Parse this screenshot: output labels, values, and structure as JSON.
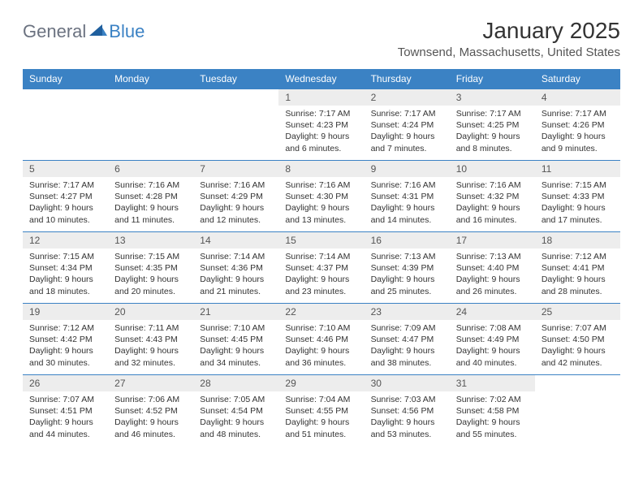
{
  "logo": {
    "word1": "General",
    "word2": "Blue"
  },
  "title": "January 2025",
  "location": "Townsend, Massachusetts, United States",
  "dayHeaders": [
    "Sunday",
    "Monday",
    "Tuesday",
    "Wednesday",
    "Thursday",
    "Friday",
    "Saturday"
  ],
  "colors": {
    "headerBg": "#3b82c4",
    "headerText": "#ffffff",
    "dayNumBg": "#ededed",
    "border": "#3b82c4"
  },
  "weeks": [
    [
      {
        "n": "",
        "blank": true
      },
      {
        "n": "",
        "blank": true
      },
      {
        "n": "",
        "blank": true
      },
      {
        "n": "1",
        "sr": "Sunrise: 7:17 AM",
        "ss": "Sunset: 4:23 PM",
        "d1": "Daylight: 9 hours",
        "d2": "and 6 minutes."
      },
      {
        "n": "2",
        "sr": "Sunrise: 7:17 AM",
        "ss": "Sunset: 4:24 PM",
        "d1": "Daylight: 9 hours",
        "d2": "and 7 minutes."
      },
      {
        "n": "3",
        "sr": "Sunrise: 7:17 AM",
        "ss": "Sunset: 4:25 PM",
        "d1": "Daylight: 9 hours",
        "d2": "and 8 minutes."
      },
      {
        "n": "4",
        "sr": "Sunrise: 7:17 AM",
        "ss": "Sunset: 4:26 PM",
        "d1": "Daylight: 9 hours",
        "d2": "and 9 minutes."
      }
    ],
    [
      {
        "n": "5",
        "sr": "Sunrise: 7:17 AM",
        "ss": "Sunset: 4:27 PM",
        "d1": "Daylight: 9 hours",
        "d2": "and 10 minutes."
      },
      {
        "n": "6",
        "sr": "Sunrise: 7:16 AM",
        "ss": "Sunset: 4:28 PM",
        "d1": "Daylight: 9 hours",
        "d2": "and 11 minutes."
      },
      {
        "n": "7",
        "sr": "Sunrise: 7:16 AM",
        "ss": "Sunset: 4:29 PM",
        "d1": "Daylight: 9 hours",
        "d2": "and 12 minutes."
      },
      {
        "n": "8",
        "sr": "Sunrise: 7:16 AM",
        "ss": "Sunset: 4:30 PM",
        "d1": "Daylight: 9 hours",
        "d2": "and 13 minutes."
      },
      {
        "n": "9",
        "sr": "Sunrise: 7:16 AM",
        "ss": "Sunset: 4:31 PM",
        "d1": "Daylight: 9 hours",
        "d2": "and 14 minutes."
      },
      {
        "n": "10",
        "sr": "Sunrise: 7:16 AM",
        "ss": "Sunset: 4:32 PM",
        "d1": "Daylight: 9 hours",
        "d2": "and 16 minutes."
      },
      {
        "n": "11",
        "sr": "Sunrise: 7:15 AM",
        "ss": "Sunset: 4:33 PM",
        "d1": "Daylight: 9 hours",
        "d2": "and 17 minutes."
      }
    ],
    [
      {
        "n": "12",
        "sr": "Sunrise: 7:15 AM",
        "ss": "Sunset: 4:34 PM",
        "d1": "Daylight: 9 hours",
        "d2": "and 18 minutes."
      },
      {
        "n": "13",
        "sr": "Sunrise: 7:15 AM",
        "ss": "Sunset: 4:35 PM",
        "d1": "Daylight: 9 hours",
        "d2": "and 20 minutes."
      },
      {
        "n": "14",
        "sr": "Sunrise: 7:14 AM",
        "ss": "Sunset: 4:36 PM",
        "d1": "Daylight: 9 hours",
        "d2": "and 21 minutes."
      },
      {
        "n": "15",
        "sr": "Sunrise: 7:14 AM",
        "ss": "Sunset: 4:37 PM",
        "d1": "Daylight: 9 hours",
        "d2": "and 23 minutes."
      },
      {
        "n": "16",
        "sr": "Sunrise: 7:13 AM",
        "ss": "Sunset: 4:39 PM",
        "d1": "Daylight: 9 hours",
        "d2": "and 25 minutes."
      },
      {
        "n": "17",
        "sr": "Sunrise: 7:13 AM",
        "ss": "Sunset: 4:40 PM",
        "d1": "Daylight: 9 hours",
        "d2": "and 26 minutes."
      },
      {
        "n": "18",
        "sr": "Sunrise: 7:12 AM",
        "ss": "Sunset: 4:41 PM",
        "d1": "Daylight: 9 hours",
        "d2": "and 28 minutes."
      }
    ],
    [
      {
        "n": "19",
        "sr": "Sunrise: 7:12 AM",
        "ss": "Sunset: 4:42 PM",
        "d1": "Daylight: 9 hours",
        "d2": "and 30 minutes."
      },
      {
        "n": "20",
        "sr": "Sunrise: 7:11 AM",
        "ss": "Sunset: 4:43 PM",
        "d1": "Daylight: 9 hours",
        "d2": "and 32 minutes."
      },
      {
        "n": "21",
        "sr": "Sunrise: 7:10 AM",
        "ss": "Sunset: 4:45 PM",
        "d1": "Daylight: 9 hours",
        "d2": "and 34 minutes."
      },
      {
        "n": "22",
        "sr": "Sunrise: 7:10 AM",
        "ss": "Sunset: 4:46 PM",
        "d1": "Daylight: 9 hours",
        "d2": "and 36 minutes."
      },
      {
        "n": "23",
        "sr": "Sunrise: 7:09 AM",
        "ss": "Sunset: 4:47 PM",
        "d1": "Daylight: 9 hours",
        "d2": "and 38 minutes."
      },
      {
        "n": "24",
        "sr": "Sunrise: 7:08 AM",
        "ss": "Sunset: 4:49 PM",
        "d1": "Daylight: 9 hours",
        "d2": "and 40 minutes."
      },
      {
        "n": "25",
        "sr": "Sunrise: 7:07 AM",
        "ss": "Sunset: 4:50 PM",
        "d1": "Daylight: 9 hours",
        "d2": "and 42 minutes."
      }
    ],
    [
      {
        "n": "26",
        "sr": "Sunrise: 7:07 AM",
        "ss": "Sunset: 4:51 PM",
        "d1": "Daylight: 9 hours",
        "d2": "and 44 minutes."
      },
      {
        "n": "27",
        "sr": "Sunrise: 7:06 AM",
        "ss": "Sunset: 4:52 PM",
        "d1": "Daylight: 9 hours",
        "d2": "and 46 minutes."
      },
      {
        "n": "28",
        "sr": "Sunrise: 7:05 AM",
        "ss": "Sunset: 4:54 PM",
        "d1": "Daylight: 9 hours",
        "d2": "and 48 minutes."
      },
      {
        "n": "29",
        "sr": "Sunrise: 7:04 AM",
        "ss": "Sunset: 4:55 PM",
        "d1": "Daylight: 9 hours",
        "d2": "and 51 minutes."
      },
      {
        "n": "30",
        "sr": "Sunrise: 7:03 AM",
        "ss": "Sunset: 4:56 PM",
        "d1": "Daylight: 9 hours",
        "d2": "and 53 minutes."
      },
      {
        "n": "31",
        "sr": "Sunrise: 7:02 AM",
        "ss": "Sunset: 4:58 PM",
        "d1": "Daylight: 9 hours",
        "d2": "and 55 minutes."
      },
      {
        "n": "",
        "blank": true
      }
    ]
  ]
}
